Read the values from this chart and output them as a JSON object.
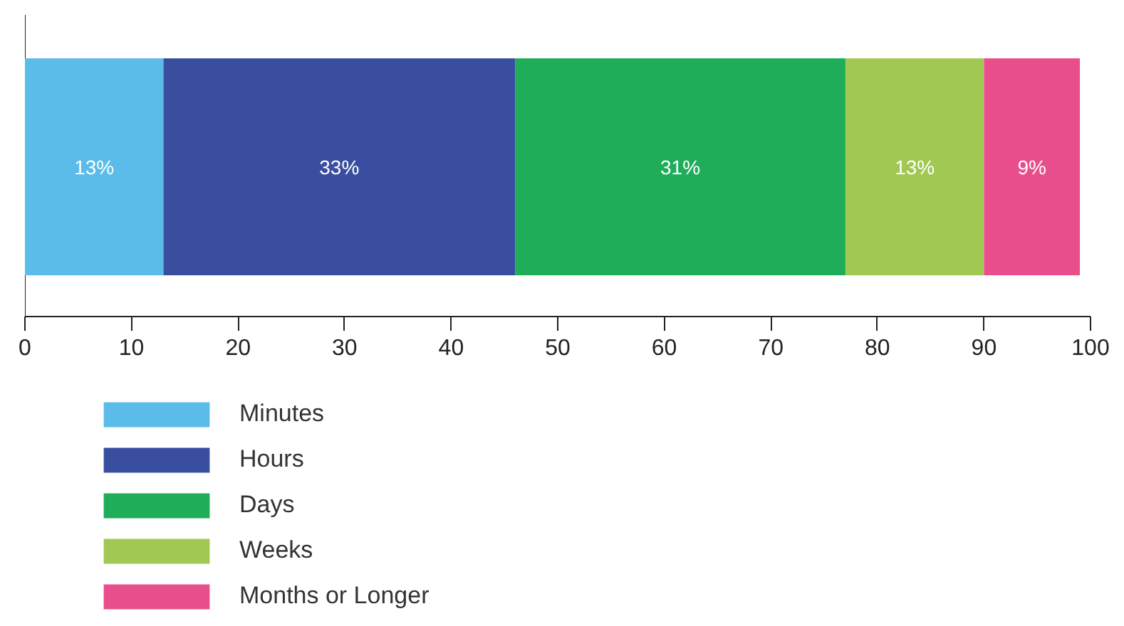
{
  "chart_data": {
    "type": "bar",
    "orientation": "horizontal",
    "stacked": true,
    "categories": [
      null
    ],
    "series": [
      {
        "name": "Minutes",
        "color": "#5bbce9",
        "values": [
          13
        ],
        "value_labels": [
          "13%"
        ]
      },
      {
        "name": "Hours",
        "color": "#3a4ea0",
        "values": [
          33
        ],
        "value_labels": [
          "33%"
        ]
      },
      {
        "name": "Days",
        "color": "#1fad5a",
        "values": [
          31
        ],
        "value_labels": [
          "31%"
        ]
      },
      {
        "name": "Weeks",
        "color": "#a1c852",
        "values": [
          13
        ],
        "value_labels": [
          "13%"
        ]
      },
      {
        "name": "Months or Longer",
        "color": "#e84e8b",
        "values": [
          9
        ],
        "value_labels": [
          "9%"
        ]
      }
    ],
    "xlim": [
      0,
      100
    ],
    "xticks": [
      0,
      10,
      20,
      30,
      40,
      50,
      60,
      70,
      80,
      90,
      100
    ],
    "grid": false,
    "legend": "bottom left"
  }
}
